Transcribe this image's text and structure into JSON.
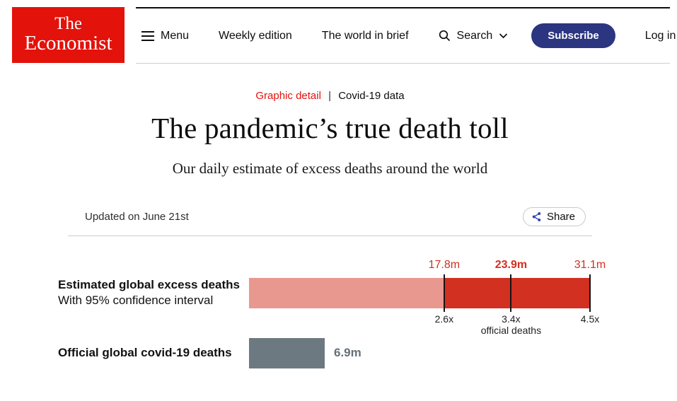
{
  "header": {
    "logo_line1": "The",
    "logo_line2": "Economist",
    "nav_menu": "Menu",
    "nav_weekly": "Weekly edition",
    "nav_world": "The world in brief",
    "nav_search": "Search",
    "subscribe": "Subscribe",
    "login": "Log in"
  },
  "breadcrumb": {
    "section": "Graphic detail",
    "separator": "|",
    "topic": "Covid-19 data"
  },
  "article": {
    "title": "The pandemic’s true death toll",
    "subtitle": "Our daily estimate of excess deaths around the world",
    "updated": "Updated on June 21st",
    "share": "Share"
  },
  "colors": {
    "brand_red": "#e3120b",
    "chart_red": "#d23021",
    "chart_pink": "#e9988f",
    "chart_gray": "#6d7980",
    "subscribe_blue": "#2b3580",
    "share_icon_blue": "#2e45b8",
    "tick_black": "#141414"
  },
  "chart_data": {
    "type": "bar",
    "orientation": "horizontal",
    "unit": "deaths, millions",
    "x_max": 31.1,
    "rows": [
      {
        "label": "Estimated global excess deaths",
        "sublabel": "With 95% confidence interval",
        "point_estimate": 23.9,
        "ci_low": 17.8,
        "ci_high": 31.1,
        "markers": [
          {
            "value": 17.8,
            "value_label": "17.8m",
            "multiple_label": "2.6x",
            "emphasis": false
          },
          {
            "value": 23.9,
            "value_label": "23.9m",
            "multiple_label": "3.4x",
            "emphasis": true,
            "note": "official deaths"
          },
          {
            "value": 31.1,
            "value_label": "31.1m",
            "multiple_label": "4.5x",
            "emphasis": false
          }
        ]
      },
      {
        "label": "Official global covid-19 deaths",
        "value": 6.9,
        "value_label": "6.9m"
      }
    ]
  }
}
